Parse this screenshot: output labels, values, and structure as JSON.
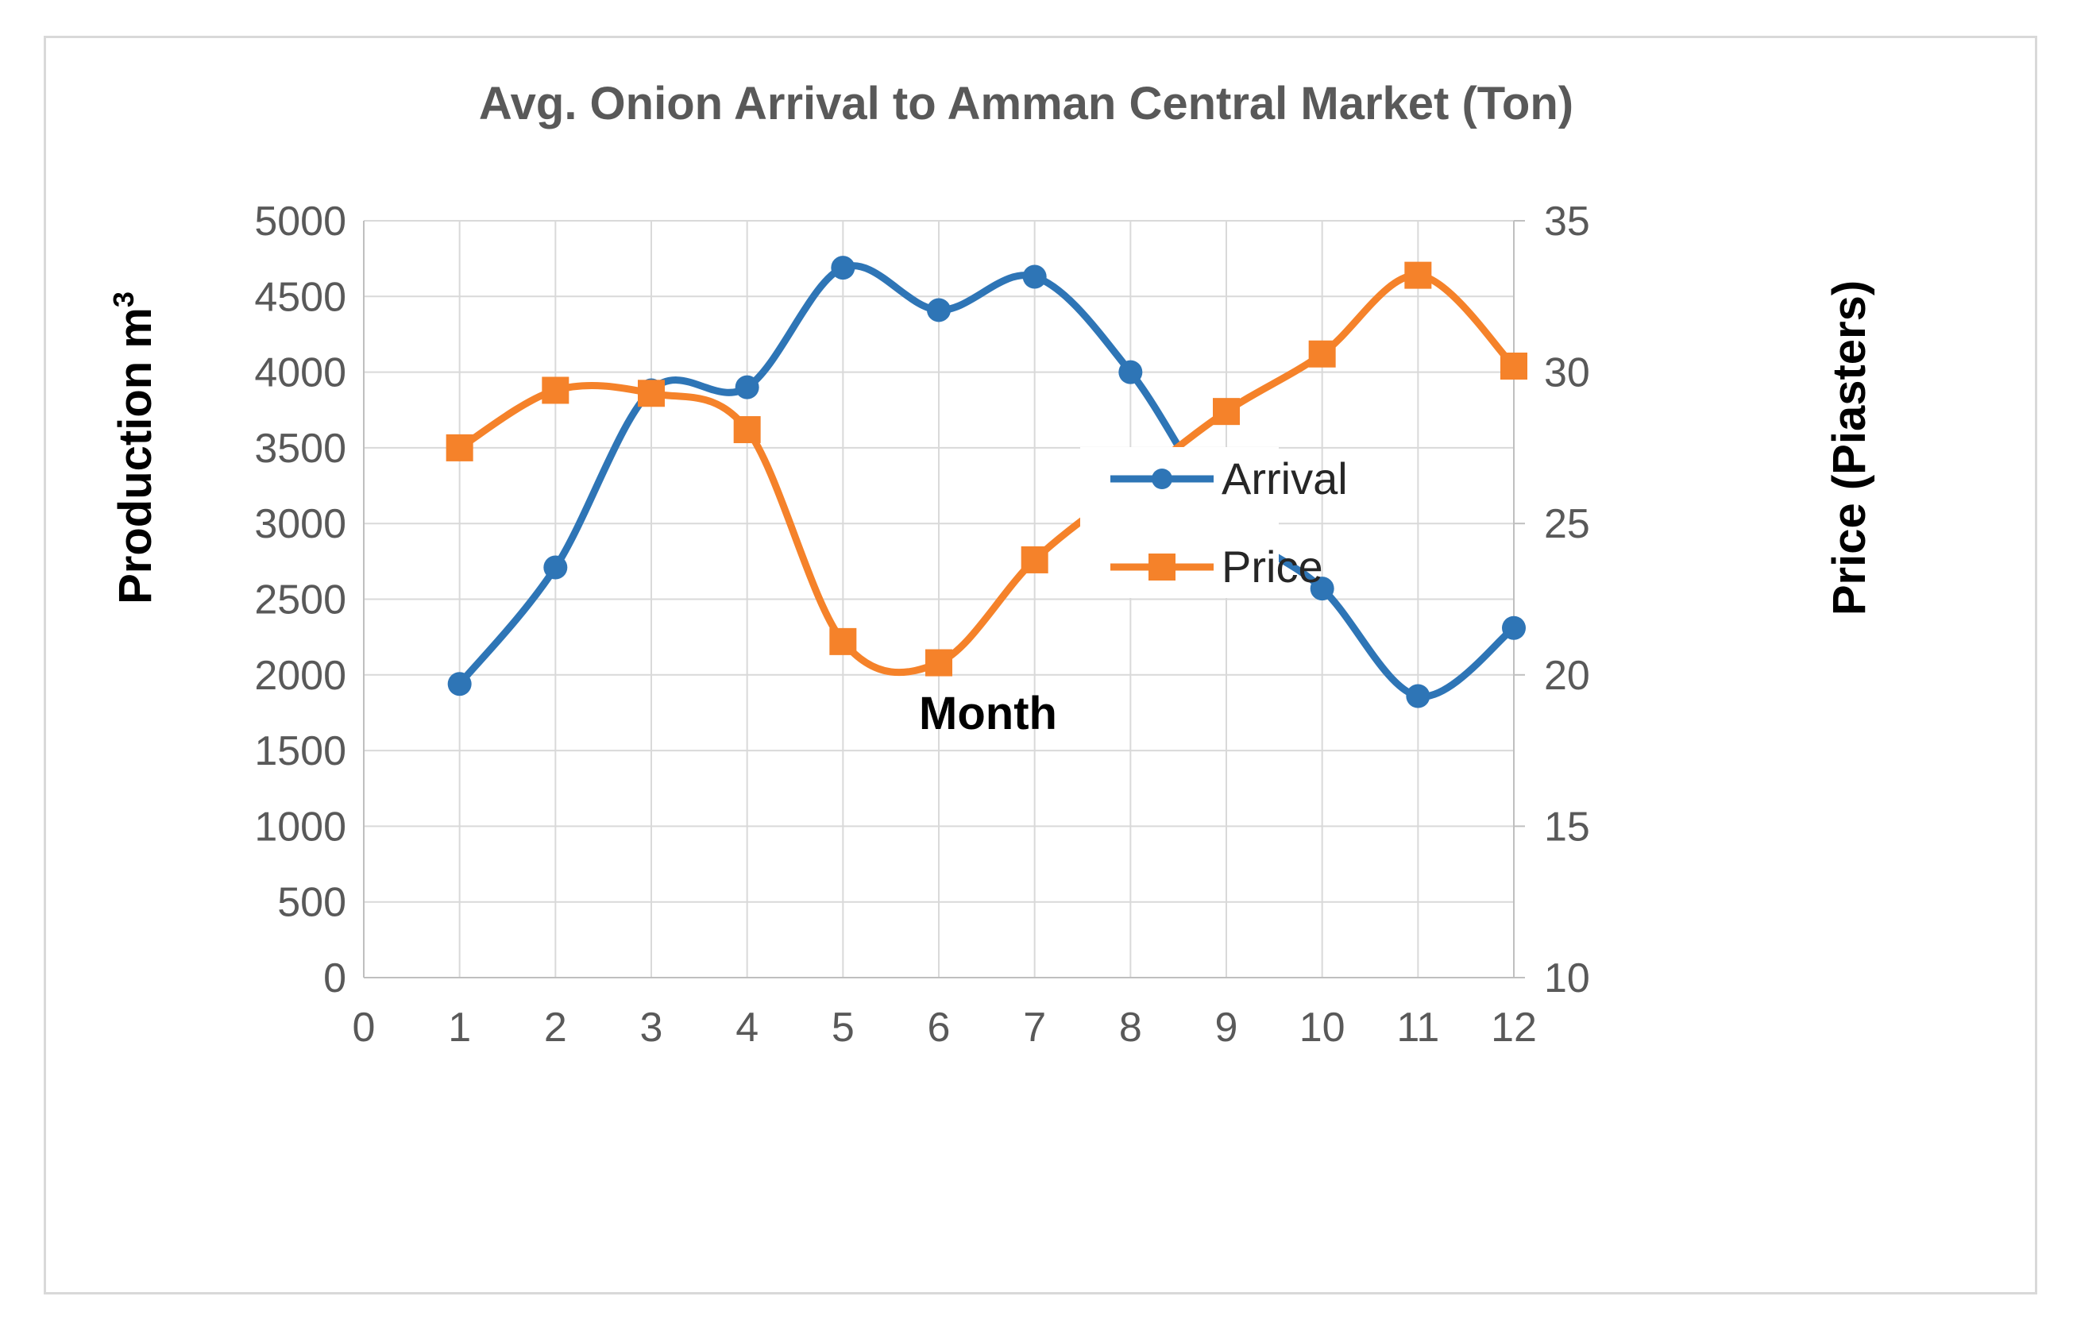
{
  "chart_data": {
    "type": "line",
    "title": "Avg. Onion Arrival to Amman Central Market (Ton)",
    "xlabel": "Month",
    "ylabel_prefix": "Production  m",
    "ylabel_superscript": "3",
    "y2label": "Price (Piasters)",
    "xlim": [
      0,
      12
    ],
    "ylim": [
      0,
      5000
    ],
    "y2lim": [
      10,
      35
    ],
    "x_ticks": [
      "0",
      "1",
      "2",
      "3",
      "4",
      "5",
      "6",
      "7",
      "8",
      "9",
      "10",
      "11",
      "12"
    ],
    "y_ticks": [
      "0",
      "500",
      "1000",
      "1500",
      "2000",
      "2500",
      "3000",
      "3500",
      "4000",
      "4500",
      "5000"
    ],
    "y2_ticks": [
      "10",
      "15",
      "20",
      "25",
      "30",
      "35"
    ],
    "grid": true,
    "legend_position": "center-right",
    "series": [
      {
        "name": "Arrival",
        "axis": "left",
        "color": "#2E75B6",
        "marker": "circle",
        "smooth": true,
        "x": [
          1,
          2,
          3,
          4,
          5,
          6,
          7,
          8,
          9,
          10,
          11,
          12
        ],
        "values": [
          1940,
          2710,
          3880,
          3900,
          4690,
          4410,
          4630,
          4000,
          3040,
          2570,
          1860,
          2310
        ]
      },
      {
        "name": "Price",
        "axis": "right",
        "color": "#F5822A",
        "marker": "square",
        "smooth": true,
        "x": [
          1,
          2,
          3,
          4,
          5,
          6,
          7,
          8,
          9,
          10,
          11,
          12
        ],
        "values": [
          27.5,
          29.4,
          29.3,
          28.1,
          21.1,
          20.4,
          23.8,
          26.3,
          28.7,
          30.6,
          33.2,
          30.2
        ]
      }
    ]
  }
}
